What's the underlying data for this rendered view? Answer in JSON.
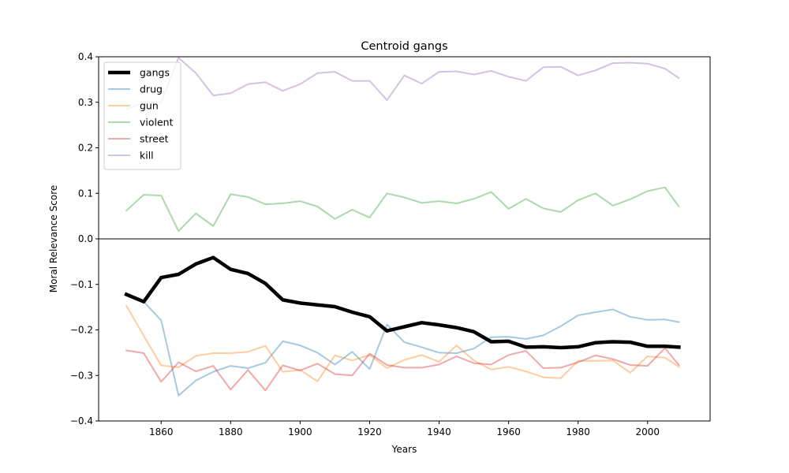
{
  "chart_data": {
    "type": "line",
    "title": "Centroid gangs",
    "xlabel": "Years",
    "ylabel": "Moral Relevance Score",
    "xlim": [
      1842,
      2018
    ],
    "ylim": [
      -0.4,
      0.4
    ],
    "xticks": [
      1860,
      1880,
      1900,
      1920,
      1940,
      1960,
      1980,
      2000
    ],
    "yticks": [
      -0.4,
      -0.3,
      -0.2,
      -0.1,
      0.0,
      0.1,
      0.2,
      0.3,
      0.4
    ],
    "ytick_labels": [
      "−0.4",
      "−0.3",
      "−0.2",
      "−0.1",
      "0.0",
      "0.1",
      "0.2",
      "0.3",
      "0.4"
    ],
    "grid": false,
    "zero_line": true,
    "legend_position": "top-left",
    "x": [
      1850,
      1855,
      1860,
      1865,
      1870,
      1875,
      1880,
      1885,
      1890,
      1895,
      1900,
      1905,
      1910,
      1915,
      1920,
      1925,
      1930,
      1935,
      1940,
      1945,
      1950,
      1955,
      1960,
      1965,
      1970,
      1975,
      1980,
      1985,
      1990,
      1995,
      2000,
      2005,
      2009
    ],
    "series": [
      {
        "name": "gangs",
        "color": "#000000",
        "width": 4.5,
        "opacity": 1.0,
        "values": [
          -0.122,
          -0.138,
          -0.085,
          -0.078,
          -0.055,
          -0.041,
          -0.067,
          -0.076,
          -0.098,
          -0.134,
          -0.141,
          -0.145,
          -0.149,
          -0.161,
          -0.171,
          -0.202,
          -0.193,
          -0.184,
          -0.189,
          -0.195,
          -0.204,
          -0.226,
          -0.225,
          -0.238,
          -0.237,
          -0.239,
          -0.237,
          -0.228,
          -0.226,
          -0.227,
          -0.236,
          -0.236,
          -0.238
        ]
      },
      {
        "name": "drug",
        "color": "#1f77b4",
        "width": 2,
        "opacity": 0.4,
        "values": [
          -0.122,
          -0.138,
          -0.179,
          -0.344,
          -0.311,
          -0.292,
          -0.279,
          -0.284,
          -0.272,
          -0.225,
          -0.234,
          -0.25,
          -0.276,
          -0.248,
          -0.286,
          -0.188,
          -0.227,
          -0.238,
          -0.25,
          -0.251,
          -0.241,
          -0.216,
          -0.215,
          -0.22,
          -0.212,
          -0.192,
          -0.168,
          -0.161,
          -0.155,
          -0.171,
          -0.178,
          -0.177,
          -0.183
        ]
      },
      {
        "name": "gun",
        "color": "#ff7f0e",
        "width": 2,
        "opacity": 0.4,
        "values": [
          -0.147,
          -0.213,
          -0.278,
          -0.282,
          -0.257,
          -0.251,
          -0.251,
          -0.248,
          -0.235,
          -0.292,
          -0.288,
          -0.313,
          -0.256,
          -0.267,
          -0.255,
          -0.284,
          -0.266,
          -0.255,
          -0.27,
          -0.234,
          -0.267,
          -0.287,
          -0.281,
          -0.291,
          -0.304,
          -0.306,
          -0.268,
          -0.268,
          -0.267,
          -0.294,
          -0.258,
          -0.261,
          -0.281
        ]
      },
      {
        "name": "violent",
        "color": "#2ca02c",
        "width": 2,
        "opacity": 0.4,
        "values": [
          0.062,
          0.097,
          0.095,
          0.017,
          0.056,
          0.028,
          0.098,
          0.092,
          0.076,
          0.078,
          0.083,
          0.071,
          0.044,
          0.064,
          0.047,
          0.1,
          0.091,
          0.079,
          0.083,
          0.078,
          0.088,
          0.103,
          0.066,
          0.088,
          0.067,
          0.059,
          0.085,
          0.1,
          0.073,
          0.087,
          0.105,
          0.113,
          0.071
        ]
      },
      {
        "name": "street",
        "color": "#d62728",
        "width": 2,
        "opacity": 0.4,
        "values": [
          -0.245,
          -0.251,
          -0.314,
          -0.271,
          -0.291,
          -0.279,
          -0.331,
          -0.288,
          -0.333,
          -0.278,
          -0.289,
          -0.274,
          -0.297,
          -0.3,
          -0.252,
          -0.277,
          -0.283,
          -0.283,
          -0.276,
          -0.258,
          -0.273,
          -0.276,
          -0.255,
          -0.246,
          -0.284,
          -0.283,
          -0.271,
          -0.256,
          -0.264,
          -0.277,
          -0.279,
          -0.24,
          -0.277
        ]
      },
      {
        "name": "kill",
        "color": "#9467bd",
        "width": 2,
        "opacity": 0.4,
        "values": [
          0.285,
          0.3,
          0.3,
          0.398,
          0.364,
          0.315,
          0.32,
          0.34,
          0.344,
          0.325,
          0.34,
          0.364,
          0.367,
          0.347,
          0.347,
          0.305,
          0.359,
          0.341,
          0.367,
          0.368,
          0.361,
          0.369,
          0.356,
          0.347,
          0.377,
          0.378,
          0.359,
          0.37,
          0.386,
          0.387,
          0.385,
          0.374,
          0.353
        ]
      }
    ]
  }
}
